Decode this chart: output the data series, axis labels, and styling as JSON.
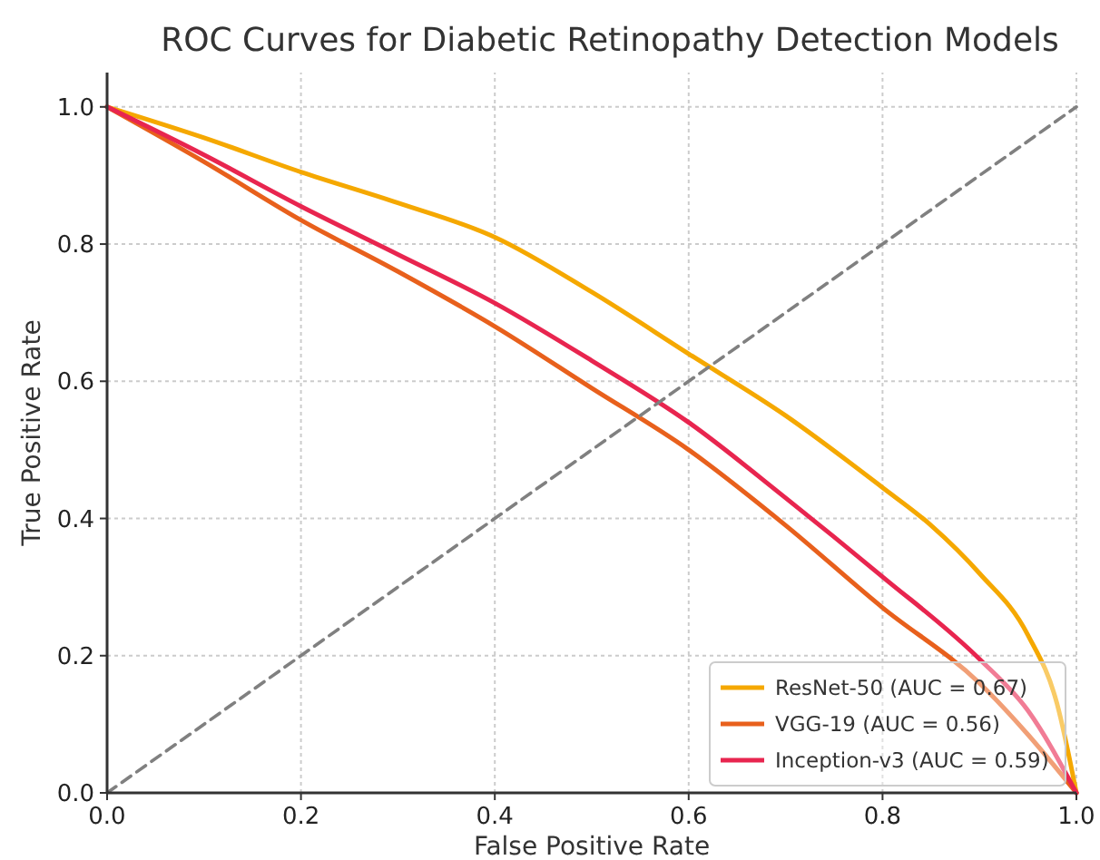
{
  "chart_data": {
    "type": "line",
    "title": "ROC Curves for Diabetic Retinopathy Detection Models",
    "xlabel": "False Positive Rate",
    "ylabel": "True Positive Rate",
    "xlim": [
      0,
      1
    ],
    "ylim": [
      0,
      1.05
    ],
    "xticks": [
      {
        "value": 0,
        "label": "0.0"
      },
      0.2,
      0.4,
      0.6,
      0.8,
      {
        "value": 1,
        "label": "1.0"
      }
    ],
    "yticks": [
      {
        "value": 0,
        "label": "0.0"
      },
      0.2,
      0.4,
      0.6,
      0.8,
      {
        "value": 1,
        "label": "1.0"
      }
    ],
    "grid": true,
    "legend": "bottom right",
    "marker": "none",
    "series": [
      {
        "name": "ResNet-50 (AUC = 0.67)",
        "color": "#f5a800",
        "x": [
          0,
          0.1,
          0.2,
          0.3,
          0.4,
          0.5,
          0.6,
          0.7,
          0.8,
          0.85,
          0.9,
          0.95,
          0.98,
          1
        ],
        "values": [
          1,
          0.955,
          0.905,
          0.86,
          0.81,
          0.73,
          0.64,
          0.55,
          0.445,
          0.39,
          0.32,
          0.23,
          0.13,
          0
        ]
      },
      {
        "name": "VGG-19 (AUC = 0.56)",
        "color": "#e8601c",
        "x": [
          0,
          0.1,
          0.2,
          0.3,
          0.4,
          0.5,
          0.6,
          0.7,
          0.8,
          0.9,
          0.95,
          1
        ],
        "values": [
          1,
          0.92,
          0.835,
          0.76,
          0.68,
          0.59,
          0.5,
          0.39,
          0.27,
          0.16,
          0.085,
          0
        ]
      },
      {
        "name": "Inception-v3 (AUC = 0.59)",
        "color": "#e8254f",
        "x": [
          0,
          0.1,
          0.2,
          0.3,
          0.4,
          0.5,
          0.6,
          0.7,
          0.8,
          0.9,
          0.95,
          1
        ],
        "values": [
          1,
          0.93,
          0.855,
          0.785,
          0.714,
          0.63,
          0.54,
          0.43,
          0.315,
          0.195,
          0.12,
          0
        ]
      },
      {
        "type": "line",
        "color": "#808080",
        "line_style": "dashed",
        "x": [
          0,
          1
        ],
        "values": [
          0,
          1
        ]
      }
    ]
  }
}
